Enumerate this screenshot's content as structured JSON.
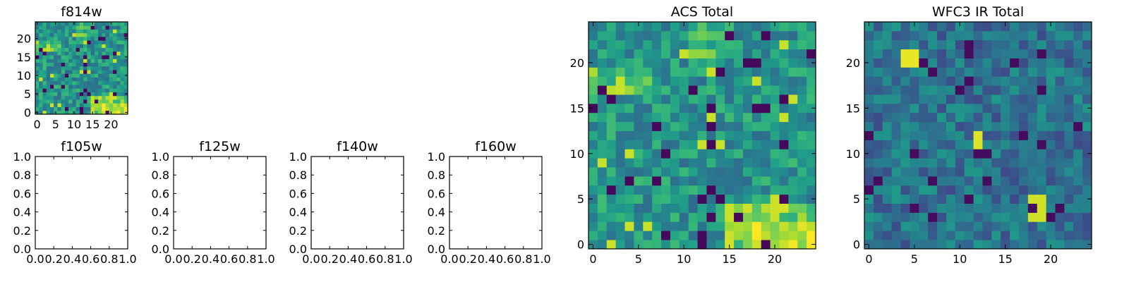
{
  "figure": {
    "colormap": "viridis",
    "background": "#ffffff"
  },
  "chart_data": [
    {
      "id": "f814w",
      "type": "heatmap",
      "title": "f814w",
      "grid_shape": [
        25,
        25
      ],
      "xlim": [
        -0.5,
        24.5
      ],
      "ylim": [
        -0.5,
        24.5
      ],
      "xticks": [
        0,
        5,
        10,
        15,
        20
      ],
      "yticks": [
        0,
        5,
        10,
        15,
        20
      ],
      "xtick_labels": [
        "0",
        "5",
        "10",
        "15",
        "20"
      ],
      "ytick_labels": [
        "0",
        "5",
        "10",
        "15",
        "20"
      ],
      "grid": false,
      "pattern": "acs"
    },
    {
      "id": "f105w",
      "type": "empty",
      "title": "f105w",
      "xlim": [
        0,
        1
      ],
      "ylim": [
        0,
        1
      ],
      "xticks": [
        0,
        0.2,
        0.4,
        0.6,
        0.8,
        1.0
      ],
      "yticks": [
        0,
        0.2,
        0.4,
        0.6,
        0.8,
        1.0
      ],
      "xtick_labels": [
        "0.0",
        "0.2",
        "0.4",
        "0.6",
        "0.8",
        "1.0"
      ],
      "ytick_labels": [
        "0.0",
        "0.2",
        "0.4",
        "0.6",
        "0.8",
        "1.0"
      ],
      "grid": false
    },
    {
      "id": "f125w",
      "type": "empty",
      "title": "f125w",
      "xlim": [
        0,
        1
      ],
      "ylim": [
        0,
        1
      ],
      "xticks": [
        0,
        0.2,
        0.4,
        0.6,
        0.8,
        1.0
      ],
      "yticks": [
        0,
        0.2,
        0.4,
        0.6,
        0.8,
        1.0
      ],
      "xtick_labels": [
        "0.0",
        "0.2",
        "0.4",
        "0.6",
        "0.8",
        "1.0"
      ],
      "ytick_labels": [
        "0.0",
        "0.2",
        "0.4",
        "0.6",
        "0.8",
        "1.0"
      ],
      "grid": false
    },
    {
      "id": "f140w",
      "type": "empty",
      "title": "f140w",
      "xlim": [
        0,
        1
      ],
      "ylim": [
        0,
        1
      ],
      "xticks": [
        0,
        0.2,
        0.4,
        0.6,
        0.8,
        1.0
      ],
      "yticks": [
        0,
        0.2,
        0.4,
        0.6,
        0.8,
        1.0
      ],
      "xtick_labels": [
        "0.0",
        "0.2",
        "0.4",
        "0.6",
        "0.8",
        "1.0"
      ],
      "ytick_labels": [
        "0.0",
        "0.2",
        "0.4",
        "0.6",
        "0.8",
        "1.0"
      ],
      "grid": false
    },
    {
      "id": "f160w",
      "type": "empty",
      "title": "f160w",
      "xlim": [
        0,
        1
      ],
      "ylim": [
        0,
        1
      ],
      "xticks": [
        0,
        0.2,
        0.4,
        0.6,
        0.8,
        1.0
      ],
      "yticks": [
        0,
        0.2,
        0.4,
        0.6,
        0.8,
        1.0
      ],
      "xtick_labels": [
        "0.0",
        "0.2",
        "0.4",
        "0.6",
        "0.8",
        "1.0"
      ],
      "ytick_labels": [
        "0.0",
        "0.2",
        "0.4",
        "0.6",
        "0.8",
        "1.0"
      ],
      "grid": false
    },
    {
      "id": "acs_total",
      "type": "heatmap",
      "title": "ACS Total",
      "grid_shape": [
        25,
        25
      ],
      "xlim": [
        -0.5,
        24.5
      ],
      "ylim": [
        -0.5,
        24.5
      ],
      "xticks": [
        0,
        5,
        10,
        15,
        20
      ],
      "yticks": [
        0,
        5,
        10,
        15,
        20
      ],
      "xtick_labels": [
        "0",
        "5",
        "10",
        "15",
        "20"
      ],
      "ytick_labels": [
        "0",
        "5",
        "10",
        "15",
        "20"
      ],
      "grid": false,
      "pattern": "acs"
    },
    {
      "id": "wfc3_ir_total",
      "type": "heatmap",
      "title": "WFC3 IR Total",
      "grid_shape": [
        25,
        25
      ],
      "xlim": [
        -0.5,
        24.5
      ],
      "ylim": [
        -0.5,
        24.5
      ],
      "xticks": [
        0,
        5,
        10,
        15,
        20
      ],
      "yticks": [
        0,
        5,
        10,
        15,
        20
      ],
      "xtick_labels": [
        "0",
        "5",
        "10",
        "15",
        "20"
      ],
      "ytick_labels": [
        "0",
        "5",
        "10",
        "15",
        "20"
      ],
      "grid": false,
      "pattern": "wfc3"
    }
  ]
}
